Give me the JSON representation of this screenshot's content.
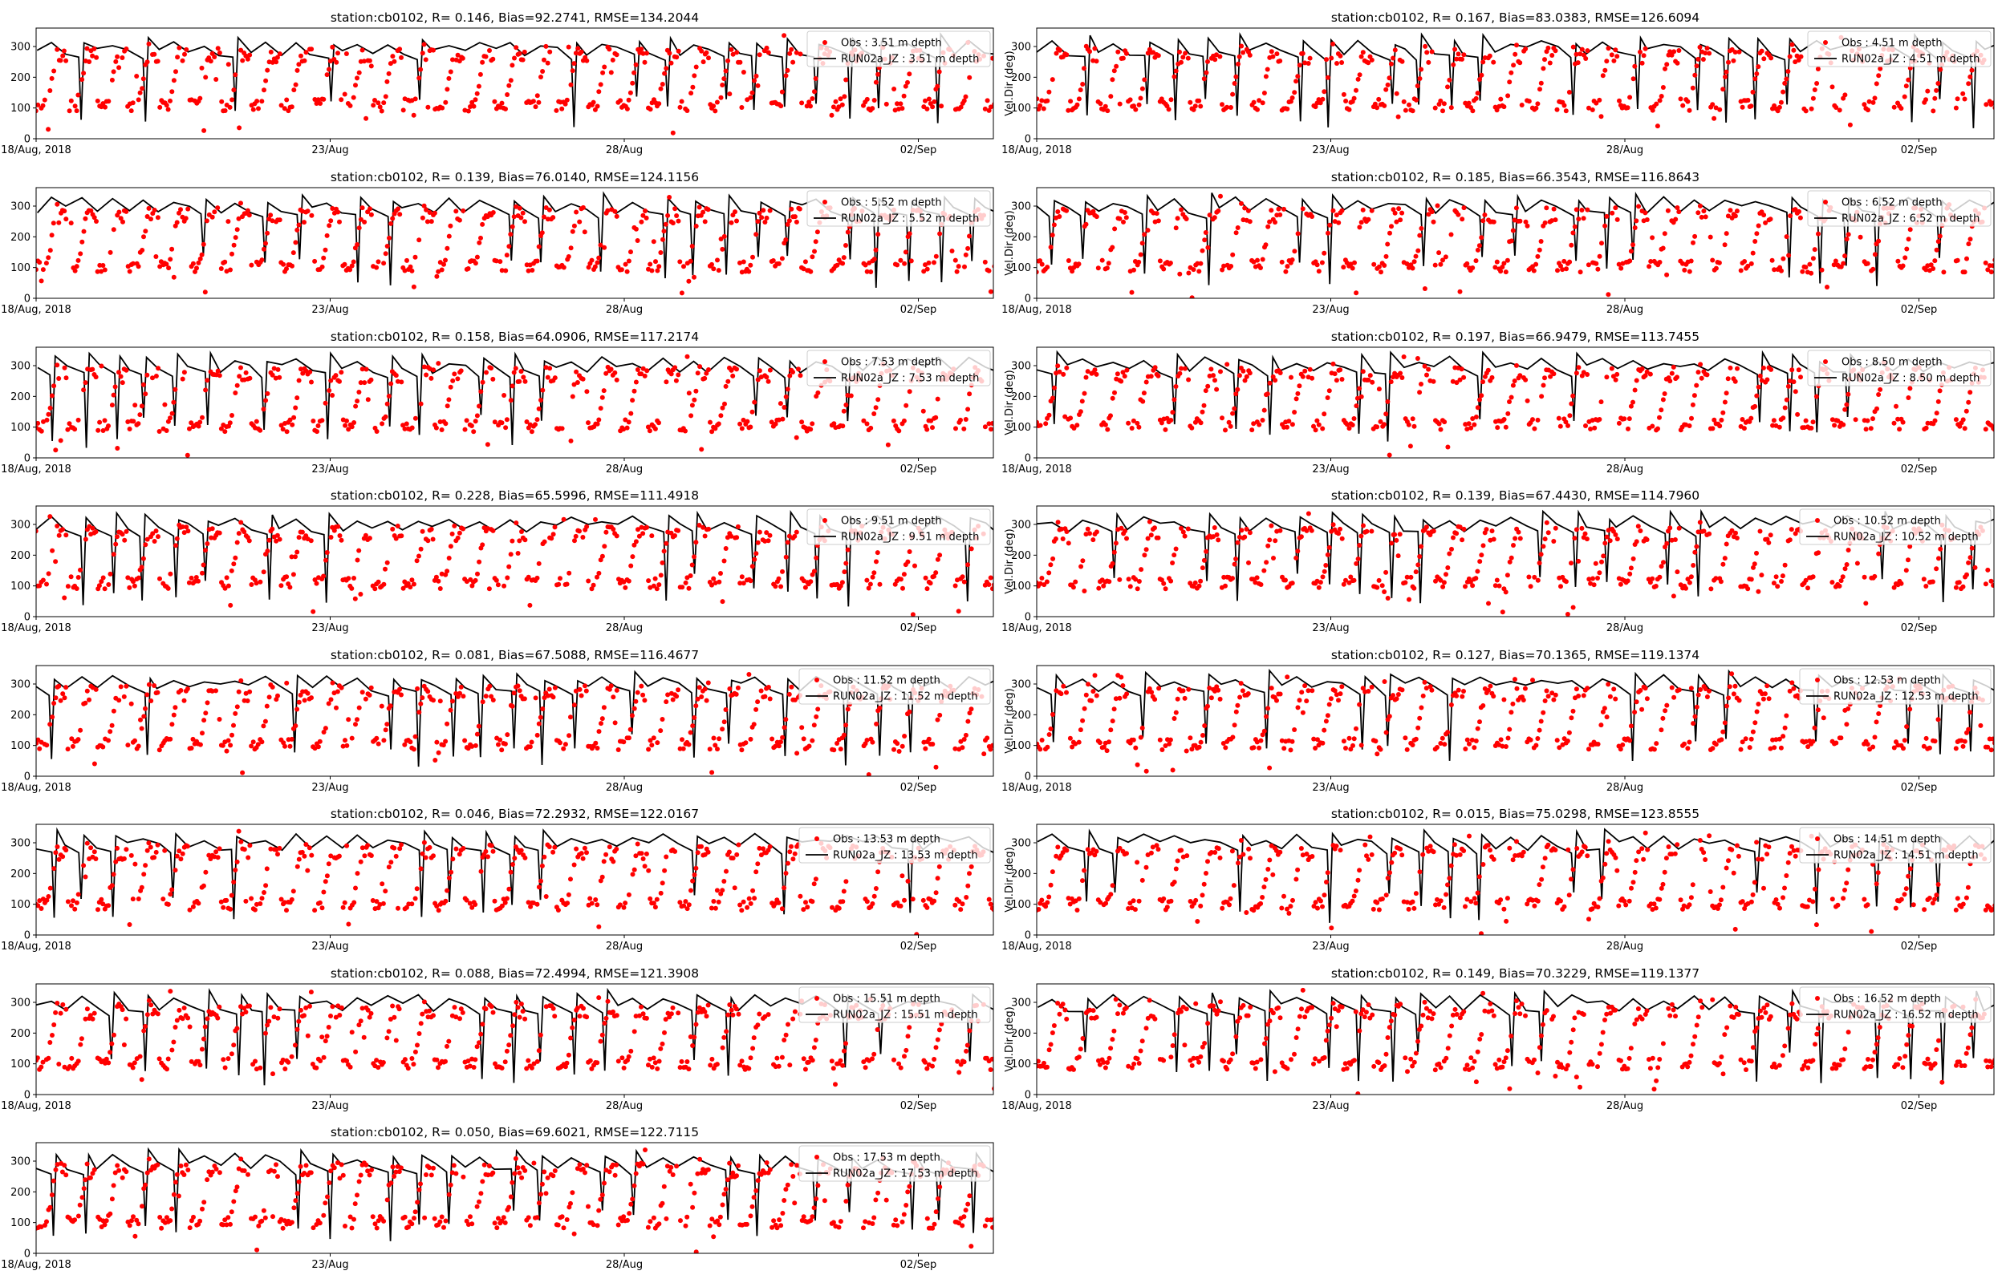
{
  "figure": {
    "background": "#ffffff",
    "obs_color": "#ff0000",
    "model_color": "#000000",
    "legend_box_color": "#cccccc"
  },
  "chart_data": [
    {
      "type": "scatter",
      "title": "station:cb0102, R= 0.146, Bias=92.2741, RMSE=134.2044",
      "ylabel": "",
      "xtick_labels": [
        "18/Aug, 2018",
        "23/Aug",
        "28/Aug",
        "02/Sep"
      ],
      "yticks": [
        0,
        100,
        200,
        300
      ],
      "ylim": [
        0,
        360
      ],
      "xlim_days": [
        0,
        16.2
      ],
      "legend": [
        "Obs : 3.51 m depth",
        "RUN02a_JZ : 3.51 m depth"
      ],
      "legend_position": "upper right",
      "series": [
        {
          "name": "Obs : 3.51 m depth",
          "kind": "points",
          "baseline_deg": 110
        },
        {
          "name": "RUN02a_JZ : 3.51 m depth",
          "kind": "line",
          "baseline_deg": 285
        }
      ]
    },
    {
      "type": "scatter",
      "title": "station:cb0102, R= 0.167, Bias=83.0383, RMSE=126.6094",
      "ylabel": "Vel.Dir (deg)",
      "xtick_labels": [
        "18/Aug, 2018",
        "23/Aug",
        "28/Aug",
        "02/Sep"
      ],
      "yticks": [
        0,
        100,
        200,
        300
      ],
      "ylim": [
        0,
        360
      ],
      "xlim_days": [
        0,
        16.2
      ],
      "legend": [
        "Obs : 4.51 m depth",
        "RUN02a_JZ : 4.51 m depth"
      ],
      "legend_position": "upper right",
      "series": [
        {
          "name": "Obs : 4.51 m depth",
          "kind": "points",
          "baseline_deg": 110
        },
        {
          "name": "RUN02a_JZ : 4.51 m depth",
          "kind": "line",
          "baseline_deg": 285
        }
      ]
    },
    {
      "type": "scatter",
      "title": "station:cb0102, R= 0.139, Bias=76.0140, RMSE=124.1156",
      "ylabel": "",
      "xtick_labels": [
        "18/Aug, 2018",
        "23/Aug",
        "28/Aug",
        "02/Sep"
      ],
      "yticks": [
        0,
        100,
        200,
        300
      ],
      "ylim": [
        0,
        360
      ],
      "xlim_days": [
        0,
        16.2
      ],
      "legend": [
        "Obs : 5.52 m depth",
        "RUN02a_JZ : 5.52 m depth"
      ],
      "legend_position": "upper right",
      "series": [
        {
          "name": "Obs : 5.52 m depth",
          "kind": "points",
          "baseline_deg": 105
        },
        {
          "name": "RUN02a_JZ : 5.52 m depth",
          "kind": "line",
          "baseline_deg": 290
        }
      ]
    },
    {
      "type": "scatter",
      "title": "station:cb0102, R= 0.185, Bias=66.3543, RMSE=116.8643",
      "ylabel": "Vel.Dir (deg)",
      "xtick_labels": [
        "18/Aug, 2018",
        "23/Aug",
        "28/Aug",
        "02/Sep"
      ],
      "yticks": [
        0,
        100,
        200,
        300
      ],
      "ylim": [
        0,
        360
      ],
      "xlim_days": [
        0,
        16.2
      ],
      "legend": [
        "Obs : 6.52 m depth",
        "RUN02a_JZ : 6.52 m depth"
      ],
      "legend_position": "upper right",
      "series": [
        {
          "name": "Obs : 6.52 m depth",
          "kind": "points",
          "baseline_deg": 105
        },
        {
          "name": "RUN02a_JZ : 6.52 m depth",
          "kind": "line",
          "baseline_deg": 290
        }
      ]
    },
    {
      "type": "scatter",
      "title": "station:cb0102, R= 0.158, Bias=64.0906, RMSE=117.2174",
      "ylabel": "",
      "xtick_labels": [
        "18/Aug, 2018",
        "23/Aug",
        "28/Aug",
        "02/Sep"
      ],
      "yticks": [
        0,
        100,
        200,
        300
      ],
      "ylim": [
        0,
        360
      ],
      "xlim_days": [
        0,
        16.2
      ],
      "legend": [
        "Obs : 7.53 m depth",
        "RUN02a_JZ : 7.53 m depth"
      ],
      "legend_position": "upper right",
      "series": [
        {
          "name": "Obs : 7.53 m depth",
          "kind": "points",
          "baseline_deg": 105
        },
        {
          "name": "RUN02a_JZ : 7.53 m depth",
          "kind": "line",
          "baseline_deg": 290
        }
      ]
    },
    {
      "type": "scatter",
      "title": "station:cb0102, R= 0.197, Bias=66.9479, RMSE=113.7455",
      "ylabel": "Vel.Dir (deg)",
      "xtick_labels": [
        "18/Aug, 2018",
        "23/Aug",
        "28/Aug",
        "02/Sep"
      ],
      "yticks": [
        0,
        100,
        200,
        300
      ],
      "ylim": [
        0,
        360
      ],
      "xlim_days": [
        0,
        16.2
      ],
      "legend": [
        "Obs : 8.50 m depth",
        "RUN02a_JZ : 8.50 m depth"
      ],
      "legend_position": "upper right",
      "series": [
        {
          "name": "Obs : 8.50 m depth",
          "kind": "points",
          "baseline_deg": 110
        },
        {
          "name": "RUN02a_JZ : 8.50 m depth",
          "kind": "line",
          "baseline_deg": 290
        }
      ]
    },
    {
      "type": "scatter",
      "title": "station:cb0102, R= 0.228, Bias=65.5996, RMSE=111.4918",
      "ylabel": "",
      "xtick_labels": [
        "18/Aug, 2018",
        "23/Aug",
        "28/Aug",
        "02/Sep"
      ],
      "yticks": [
        0,
        100,
        200,
        300
      ],
      "ylim": [
        0,
        360
      ],
      "xlim_days": [
        0,
        16.2
      ],
      "legend": [
        "Obs : 9.51 m depth",
        "RUN02a_JZ : 9.51 m depth"
      ],
      "legend_position": "upper right",
      "series": [
        {
          "name": "Obs : 9.51 m depth",
          "kind": "points",
          "baseline_deg": 110
        },
        {
          "name": "RUN02a_JZ : 9.51 m depth",
          "kind": "line",
          "baseline_deg": 290
        }
      ]
    },
    {
      "type": "scatter",
      "title": "station:cb0102, R= 0.139, Bias=67.4430, RMSE=114.7960",
      "ylabel": "Vel.Dir (deg)",
      "xtick_labels": [
        "18/Aug, 2018",
        "23/Aug",
        "28/Aug",
        "02/Sep"
      ],
      "yticks": [
        0,
        100,
        200,
        300
      ],
      "ylim": [
        0,
        360
      ],
      "xlim_days": [
        0,
        16.2
      ],
      "legend": [
        "Obs : 10.52 m depth",
        "RUN02a_JZ : 10.52 m depth"
      ],
      "legend_position": "upper right",
      "series": [
        {
          "name": "Obs : 10.52 m depth",
          "kind": "points",
          "baseline_deg": 110
        },
        {
          "name": "RUN02a_JZ : 10.52 m depth",
          "kind": "line",
          "baseline_deg": 290
        }
      ]
    },
    {
      "type": "scatter",
      "title": "station:cb0102, R= 0.081, Bias=67.5088, RMSE=116.4677",
      "ylabel": "",
      "xtick_labels": [
        "18/Aug, 2018",
        "23/Aug",
        "28/Aug",
        "02/Sep"
      ],
      "yticks": [
        0,
        100,
        200,
        300
      ],
      "ylim": [
        0,
        360
      ],
      "xlim_days": [
        0,
        16.2
      ],
      "legend": [
        "Obs : 11.52 m depth",
        "RUN02a_JZ : 11.52 m depth"
      ],
      "legend_position": "upper right",
      "series": [
        {
          "name": "Obs : 11.52 m depth",
          "kind": "points",
          "baseline_deg": 105
        },
        {
          "name": "RUN02a_JZ : 11.52 m depth",
          "kind": "line",
          "baseline_deg": 290
        }
      ]
    },
    {
      "type": "scatter",
      "title": "station:cb0102, R= 0.127, Bias=70.1365, RMSE=119.1374",
      "ylabel": "Vel.Dir (deg)",
      "xtick_labels": [
        "18/Aug, 2018",
        "23/Aug",
        "28/Aug",
        "02/Sep"
      ],
      "yticks": [
        0,
        100,
        200,
        300
      ],
      "ylim": [
        0,
        360
      ],
      "xlim_days": [
        0,
        16.2
      ],
      "legend": [
        "Obs : 12.53 m depth",
        "RUN02a_JZ : 12.53 m depth"
      ],
      "legend_position": "upper right",
      "series": [
        {
          "name": "Obs : 12.53 m depth",
          "kind": "points",
          "baseline_deg": 105
        },
        {
          "name": "RUN02a_JZ : 12.53 m depth",
          "kind": "line",
          "baseline_deg": 290
        }
      ]
    },
    {
      "type": "scatter",
      "title": "station:cb0102, R= 0.046, Bias=72.2932, RMSE=122.0167",
      "ylabel": "",
      "xtick_labels": [
        "18/Aug, 2018",
        "23/Aug",
        "28/Aug",
        "02/Sep"
      ],
      "yticks": [
        0,
        100,
        200,
        300
      ],
      "ylim": [
        0,
        360
      ],
      "xlim_days": [
        0,
        16.2
      ],
      "legend": [
        "Obs : 13.53 m depth",
        "RUN02a_JZ : 13.53 m depth"
      ],
      "legend_position": "upper right",
      "series": [
        {
          "name": "Obs : 13.53 m depth",
          "kind": "points",
          "baseline_deg": 100
        },
        {
          "name": "RUN02a_JZ : 13.53 m depth",
          "kind": "line",
          "baseline_deg": 290
        }
      ]
    },
    {
      "type": "scatter",
      "title": "station:cb0102, R= 0.015, Bias=75.0298, RMSE=123.8555",
      "ylabel": "Vel.Dir (deg)",
      "xtick_labels": [
        "18/Aug, 2018",
        "23/Aug",
        "28/Aug",
        "02/Sep"
      ],
      "yticks": [
        0,
        100,
        200,
        300
      ],
      "ylim": [
        0,
        360
      ],
      "xlim_days": [
        0,
        16.2
      ],
      "legend": [
        "Obs : 14.51 m depth",
        "RUN02a_JZ : 14.51 m depth"
      ],
      "legend_position": "upper right",
      "series": [
        {
          "name": "Obs : 14.51 m depth",
          "kind": "points",
          "baseline_deg": 100
        },
        {
          "name": "RUN02a_JZ : 14.51 m depth",
          "kind": "line",
          "baseline_deg": 290
        }
      ]
    },
    {
      "type": "scatter",
      "title": "station:cb0102, R= 0.088, Bias=72.4994, RMSE=121.3908",
      "ylabel": "",
      "xtick_labels": [
        "18/Aug, 2018",
        "23/Aug",
        "28/Aug",
        "02/Sep"
      ],
      "yticks": [
        0,
        100,
        200,
        300
      ],
      "ylim": [
        0,
        360
      ],
      "xlim_days": [
        0,
        16.2
      ],
      "legend": [
        "Obs : 15.51 m depth",
        "RUN02a_JZ : 15.51 m depth"
      ],
      "legend_position": "upper right",
      "series": [
        {
          "name": "Obs : 15.51 m depth",
          "kind": "points",
          "baseline_deg": 100
        },
        {
          "name": "RUN02a_JZ : 15.51 m depth",
          "kind": "line",
          "baseline_deg": 285
        }
      ]
    },
    {
      "type": "scatter",
      "title": "station:cb0102, R= 0.149, Bias=70.3229, RMSE=119.1377",
      "ylabel": "Vel.Dir (deg)",
      "xtick_labels": [
        "18/Aug, 2018",
        "23/Aug",
        "28/Aug",
        "02/Sep"
      ],
      "yticks": [
        0,
        100,
        200,
        300
      ],
      "ylim": [
        0,
        360
      ],
      "xlim_days": [
        0,
        16.2
      ],
      "legend": [
        "Obs : 16.52 m depth",
        "RUN02a_JZ : 16.52 m depth"
      ],
      "legend_position": "upper right",
      "series": [
        {
          "name": "Obs : 16.52 m depth",
          "kind": "points",
          "baseline_deg": 100
        },
        {
          "name": "RUN02a_JZ : 16.52 m depth",
          "kind": "line",
          "baseline_deg": 285
        }
      ]
    },
    {
      "type": "scatter",
      "title": "station:cb0102, R= 0.050, Bias=69.6021, RMSE=122.7115",
      "ylabel": "",
      "xtick_labels": [
        "18/Aug, 2018",
        "23/Aug",
        "28/Aug",
        "02/Sep"
      ],
      "yticks": [
        0,
        100,
        200,
        300
      ],
      "ylim": [
        0,
        360
      ],
      "xlim_days": [
        0,
        16.2
      ],
      "legend": [
        "Obs : 17.53 m depth",
        "RUN02a_JZ : 17.53 m depth"
      ],
      "legend_position": "upper right",
      "series": [
        {
          "name": "Obs : 17.53 m depth",
          "kind": "points",
          "baseline_deg": 100
        },
        {
          "name": "RUN02a_JZ : 17.53 m depth",
          "kind": "line",
          "baseline_deg": 285
        }
      ]
    }
  ]
}
